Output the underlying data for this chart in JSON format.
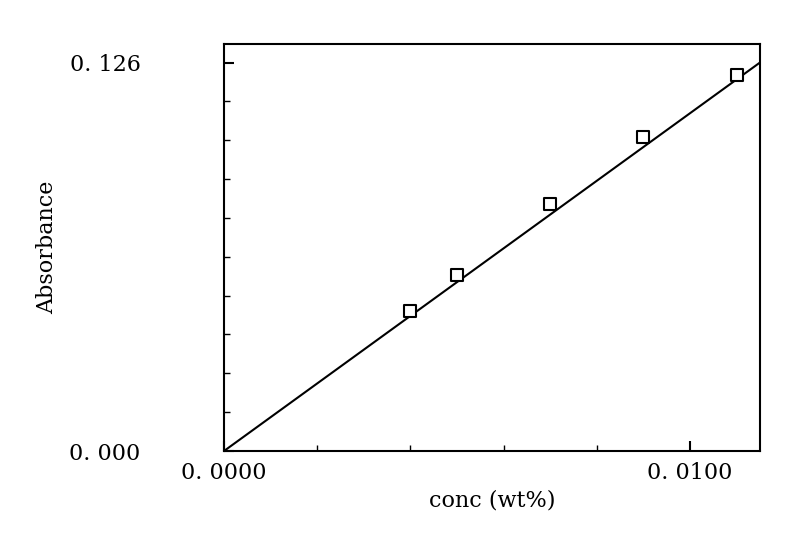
{
  "x_data": [
    0.0,
    0.0115
  ],
  "y_data": [
    0.0,
    0.126
  ],
  "scatter_x": [
    0.004,
    0.005,
    0.007,
    0.009,
    0.011
  ],
  "scatter_y": [
    0.0455,
    0.057,
    0.08,
    0.102,
    0.122
  ],
  "xlabel": "conc (wt%)",
  "ylabel": "Absorbance",
  "xlim": [
    0.0,
    0.0115
  ],
  "ylim": [
    0.0,
    0.132
  ],
  "xticks": [
    0.0,
    0.01
  ],
  "xtick_labels": [
    "0. 0000",
    "0. 0100"
  ],
  "yticks": [
    0.0,
    0.126
  ],
  "ytick_labels": [
    "0. 000",
    "0. 126"
  ],
  "marker": "s",
  "marker_size": 9,
  "marker_facecolor": "white",
  "marker_edgecolor": "black",
  "line_color": "black",
  "line_width": 1.5,
  "background_color": "white",
  "fig_width": 8.0,
  "fig_height": 5.5,
  "dpi": 100
}
